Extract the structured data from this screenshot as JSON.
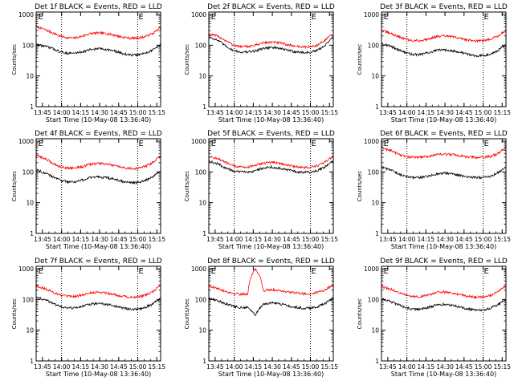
{
  "chart_data": {
    "type": "line",
    "colors": {
      "events": "#000000",
      "lld": "#ff0000"
    },
    "xticks": [
      "13:45",
      "14:00",
      "14:15",
      "14:30",
      "14:45",
      "15:00",
      "15:15"
    ],
    "yticks": [
      "1",
      "10",
      "100",
      "1000"
    ],
    "ylim": [
      1,
      1200
    ],
    "xlim": [
      "13:40",
      "15:18"
    ],
    "scale": "log",
    "markers": [
      "E",
      "E"
    ],
    "marker_times": [
      "13:41",
      "15:00"
    ],
    "dotted_lines": [
      "14:00",
      "15:00"
    ],
    "xlabel": "Start Time (10-May-08 13:36:40)",
    "ylabel": "Counts/sec",
    "panels": [
      {
        "title": "Det 1f BLACK = Events, RED = LLD",
        "series": [
          {
            "name": "LLD",
            "color": "red",
            "values": [
              400,
              330,
              260,
              200,
              175,
              170,
              200,
              240,
              250,
              240,
              215,
              185,
              170,
              170,
              190,
              240,
              370
            ]
          },
          {
            "name": "Events",
            "color": "black",
            "values": [
              105,
              95,
              80,
              62,
              55,
              55,
              62,
              72,
              78,
              74,
              65,
              55,
              48,
              48,
              55,
              70,
              105
            ]
          }
        ]
      },
      {
        "title": "Det 2f BLACK = Events, RED = LLD",
        "series": [
          {
            "name": "LLD",
            "color": "red",
            "values": [
              230,
              200,
              150,
              105,
              90,
              90,
              100,
              120,
              125,
              120,
              105,
              95,
              88,
              88,
              100,
              150,
              230
            ]
          },
          {
            "name": "Events",
            "color": "black",
            "values": [
              185,
              150,
              100,
              70,
              60,
              60,
              65,
              80,
              85,
              80,
              70,
              62,
              58,
              58,
              68,
              100,
              180
            ]
          }
        ]
      },
      {
        "title": "Det 3f BLACK = Events, RED = LLD",
        "series": [
          {
            "name": "LLD",
            "color": "red",
            "values": [
              300,
              250,
              200,
              160,
              140,
              140,
              160,
              190,
              200,
              190,
              170,
              150,
              140,
              140,
              160,
              200,
              300
            ]
          },
          {
            "name": "Events",
            "color": "black",
            "values": [
              115,
              95,
              75,
              58,
              50,
              50,
              57,
              67,
              72,
              68,
              60,
              52,
              46,
              46,
              52,
              68,
              105
            ]
          }
        ]
      },
      {
        "title": "Det 4f BLACK = Events, RED = LLD",
        "series": [
          {
            "name": "LLD",
            "color": "red",
            "values": [
              350,
              280,
              200,
              150,
              135,
              135,
              150,
              180,
              190,
              180,
              160,
              140,
              130,
              130,
              150,
              200,
              330
            ]
          },
          {
            "name": "Events",
            "color": "black",
            "values": [
              120,
              95,
              72,
              55,
              48,
              48,
              55,
              65,
              70,
              65,
              58,
              50,
              45,
              45,
              52,
              70,
              110
            ]
          }
        ]
      },
      {
        "title": "Det 5f BLACK = Events, RED = LLD",
        "series": [
          {
            "name": "LLD",
            "color": "red",
            "values": [
              320,
              280,
              210,
              160,
              145,
              145,
              160,
              195,
              205,
              195,
              170,
              150,
              140,
              140,
              160,
              210,
              320
            ]
          },
          {
            "name": "Events",
            "color": "black",
            "values": [
              220,
              190,
              140,
              110,
              100,
              100,
              110,
              135,
              145,
              135,
              118,
              105,
              98,
              98,
              110,
              150,
              225
            ]
          }
        ]
      },
      {
        "title": "Det 6f BLACK = Events, RED = LLD",
        "series": [
          {
            "name": "LLD",
            "color": "red",
            "values": [
              600,
              520,
              400,
              320,
              300,
              300,
              320,
              360,
              380,
              370,
              340,
              310,
              300,
              300,
              320,
              400,
              620
            ]
          },
          {
            "name": "Events",
            "color": "black",
            "values": [
              140,
              120,
              90,
              72,
              66,
              66,
              72,
              85,
              92,
              88,
              78,
              70,
              66,
              66,
              72,
              95,
              140
            ]
          }
        ]
      },
      {
        "title": "Det 7f BLACK = Events, RED = LLD",
        "series": [
          {
            "name": "LLD",
            "color": "red",
            "values": [
              280,
              230,
              180,
              140,
              125,
              125,
              140,
              165,
              175,
              165,
              145,
              130,
              120,
              120,
              135,
              180,
              280
            ]
          },
          {
            "name": "Events",
            "color": "black",
            "values": [
              120,
              100,
              78,
              60,
              53,
              53,
              60,
              70,
              75,
              70,
              62,
              54,
              48,
              48,
              55,
              70,
              110
            ]
          }
        ]
      },
      {
        "title": "Det 8f BLACK = Events, RED = LLD",
        "series": [
          {
            "name": "LLD",
            "color": "red",
            "values": [
              280,
              230,
              190,
              160,
              150,
              150,
              1000,
              190,
              210,
              200,
              180,
              165,
              155,
              155,
              170,
              210,
              300
            ]
          },
          {
            "name": "Events",
            "color": "black",
            "values": [
              110,
              95,
              75,
              62,
              55,
              55,
              30,
              70,
              78,
              72,
              64,
              57,
              52,
              52,
              58,
              75,
              110
            ]
          }
        ]
      },
      {
        "title": "Det 9f BLACK = Events, RED = LLD",
        "series": [
          {
            "name": "LLD",
            "color": "red",
            "values": [
              260,
              220,
              180,
              140,
              125,
              125,
              140,
              165,
              175,
              165,
              145,
              130,
              120,
              120,
              135,
              180,
              270
            ]
          },
          {
            "name": "Events",
            "color": "black",
            "values": [
              105,
              88,
              70,
              55,
              48,
              48,
              55,
              65,
              70,
              66,
              58,
              50,
              45,
              45,
              52,
              68,
              100
            ]
          }
        ]
      }
    ]
  }
}
